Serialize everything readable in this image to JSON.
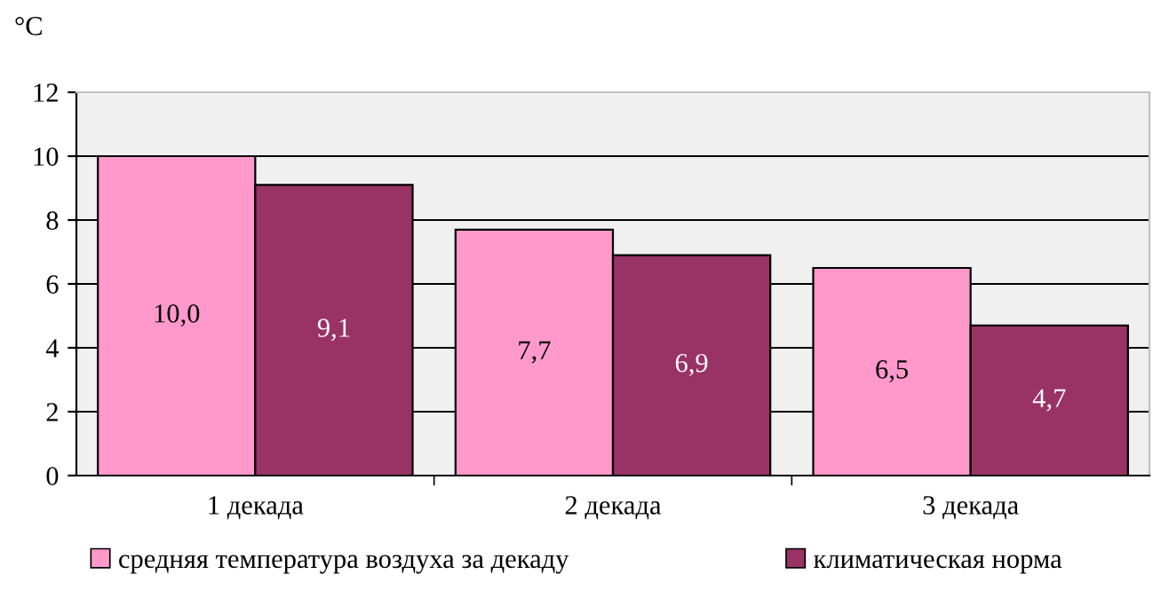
{
  "chart_data": {
    "type": "bar",
    "ylabel": "°C",
    "categories": [
      "1 декада",
      "2 декада",
      "3 декада"
    ],
    "series": [
      {
        "name": "средняя температура воздуха за декаду",
        "color": "#ff99cc",
        "values": [
          10.0,
          7.7,
          6.5
        ],
        "value_labels": [
          "10,0",
          "7,7",
          "6,5"
        ]
      },
      {
        "name": "климатическая норма",
        "color": "#993366",
        "values": [
          9.1,
          6.9,
          4.7
        ],
        "value_labels": [
          "9,1",
          "6,9",
          "4,7"
        ]
      }
    ],
    "ylim": [
      0,
      12
    ],
    "yticks": [
      0,
      2,
      4,
      6,
      8,
      10,
      12
    ],
    "grid": "y",
    "legend": "bottom"
  }
}
